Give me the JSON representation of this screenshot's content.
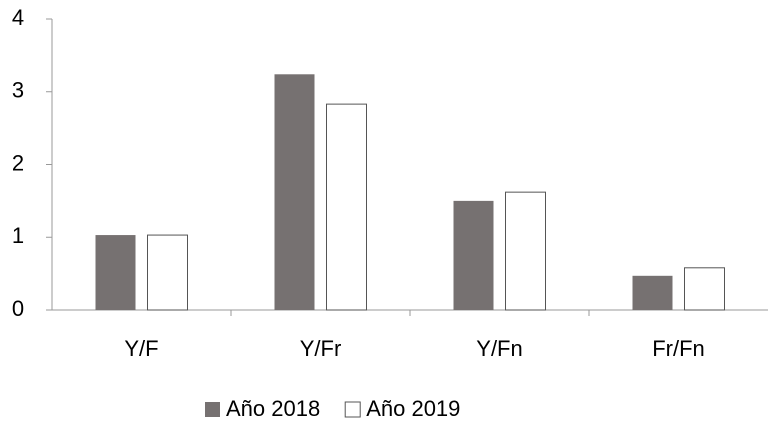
{
  "chart_data": {
    "type": "bar",
    "categories": [
      "Y/F",
      "Y/Fr",
      "Y/Fn",
      "Fr/Fn"
    ],
    "series": [
      {
        "name": "Año 2018",
        "color": "#767171",
        "values": [
          1.03,
          3.24,
          1.5,
          0.47
        ]
      },
      {
        "name": "Año 2019",
        "color": "#ffffff",
        "values": [
          1.03,
          2.83,
          1.62,
          0.58
        ]
      }
    ],
    "ylim": [
      0,
      4
    ],
    "yticks": [
      0,
      1,
      2,
      3,
      4
    ],
    "grid": false,
    "legend": "bottom"
  }
}
